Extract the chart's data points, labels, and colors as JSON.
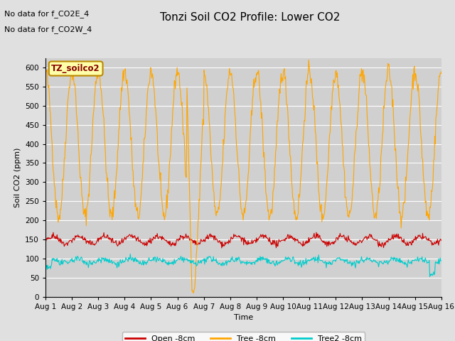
{
  "title": "Tonzi Soil CO2 Profile: Lower CO2",
  "xlabel": "Time",
  "ylabel": "Soil CO2 (ppm)",
  "annotation_lines": [
    "No data for f_CO2E_4",
    "No data for f_CO2W_4"
  ],
  "legend_label": "TZ_soilco2",
  "series_labels": [
    "Open -8cm",
    "Tree -8cm",
    "Tree2 -8cm"
  ],
  "series_colors": [
    "#cc0000",
    "#ffa500",
    "#00cccc"
  ],
  "xlim": [
    0,
    15
  ],
  "ylim": [
    0,
    625
  ],
  "yticks": [
    0,
    50,
    100,
    150,
    200,
    250,
    300,
    350,
    400,
    450,
    500,
    550,
    600
  ],
  "xtick_labels": [
    "Aug 1",
    "Aug 2",
    "Aug 3",
    "Aug 4",
    "Aug 5",
    "Aug 6",
    "Aug 7",
    "Aug 8",
    "Aug 9",
    "Aug 10",
    "Aug 11",
    "Aug 12",
    "Aug 13",
    "Aug 14",
    "Aug 15",
    "Aug 16"
  ],
  "background_color": "#e0e0e0",
  "plot_bg_color": "#d0d0d0",
  "title_fontsize": 11,
  "axis_fontsize": 8,
  "tick_fontsize": 7.5,
  "annot_fontsize": 8
}
